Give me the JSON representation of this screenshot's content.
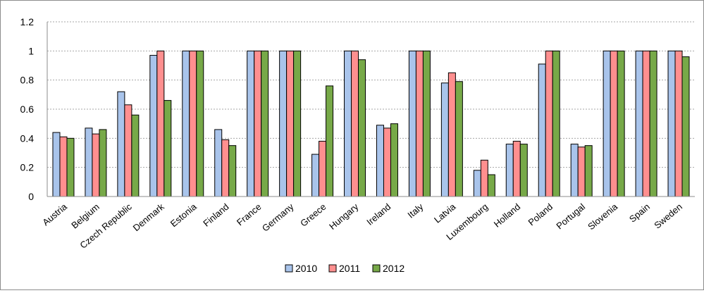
{
  "chart_data": {
    "type": "bar",
    "title": "",
    "xlabel": "",
    "ylabel": "",
    "ylim": [
      0,
      1.2
    ],
    "yticks": [
      "0",
      "0.2",
      "0.4",
      "0.6",
      "0.8",
      "1",
      "1.2"
    ],
    "grid": "horizontal dotted",
    "legend_position": "bottom",
    "categories": [
      "Austria",
      "Belgium",
      "Czech Republic",
      "Denmark",
      "Estonia",
      "Finland",
      "France",
      "Germany",
      "Greece",
      "Hungary",
      "Ireland",
      "Italy",
      "Latvia",
      "Luxembourg",
      "Holland",
      "Poland",
      "Portugal",
      "Slovenia",
      "Spain",
      "Sweden"
    ],
    "series": [
      {
        "name": "2010",
        "color": "#a9c4eb",
        "values": [
          0.44,
          0.47,
          0.72,
          0.97,
          1.0,
          0.46,
          1.0,
          1.0,
          0.29,
          1.0,
          0.49,
          1.0,
          0.78,
          0.18,
          0.36,
          0.91,
          0.36,
          1.0,
          1.0,
          1.0
        ]
      },
      {
        "name": "2011",
        "color": "#ff8f8f",
        "values": [
          0.41,
          0.43,
          0.63,
          1.0,
          1.0,
          0.39,
          1.0,
          1.0,
          0.38,
          1.0,
          0.47,
          1.0,
          0.85,
          0.25,
          0.38,
          1.0,
          0.34,
          1.0,
          1.0,
          1.0
        ]
      },
      {
        "name": "2012",
        "color": "#77a948",
        "values": [
          0.4,
          0.46,
          0.56,
          0.66,
          1.0,
          0.35,
          1.0,
          1.0,
          0.76,
          0.94,
          0.5,
          1.0,
          0.79,
          0.15,
          0.36,
          1.0,
          0.35,
          1.0,
          1.0,
          0.96
        ]
      }
    ]
  }
}
